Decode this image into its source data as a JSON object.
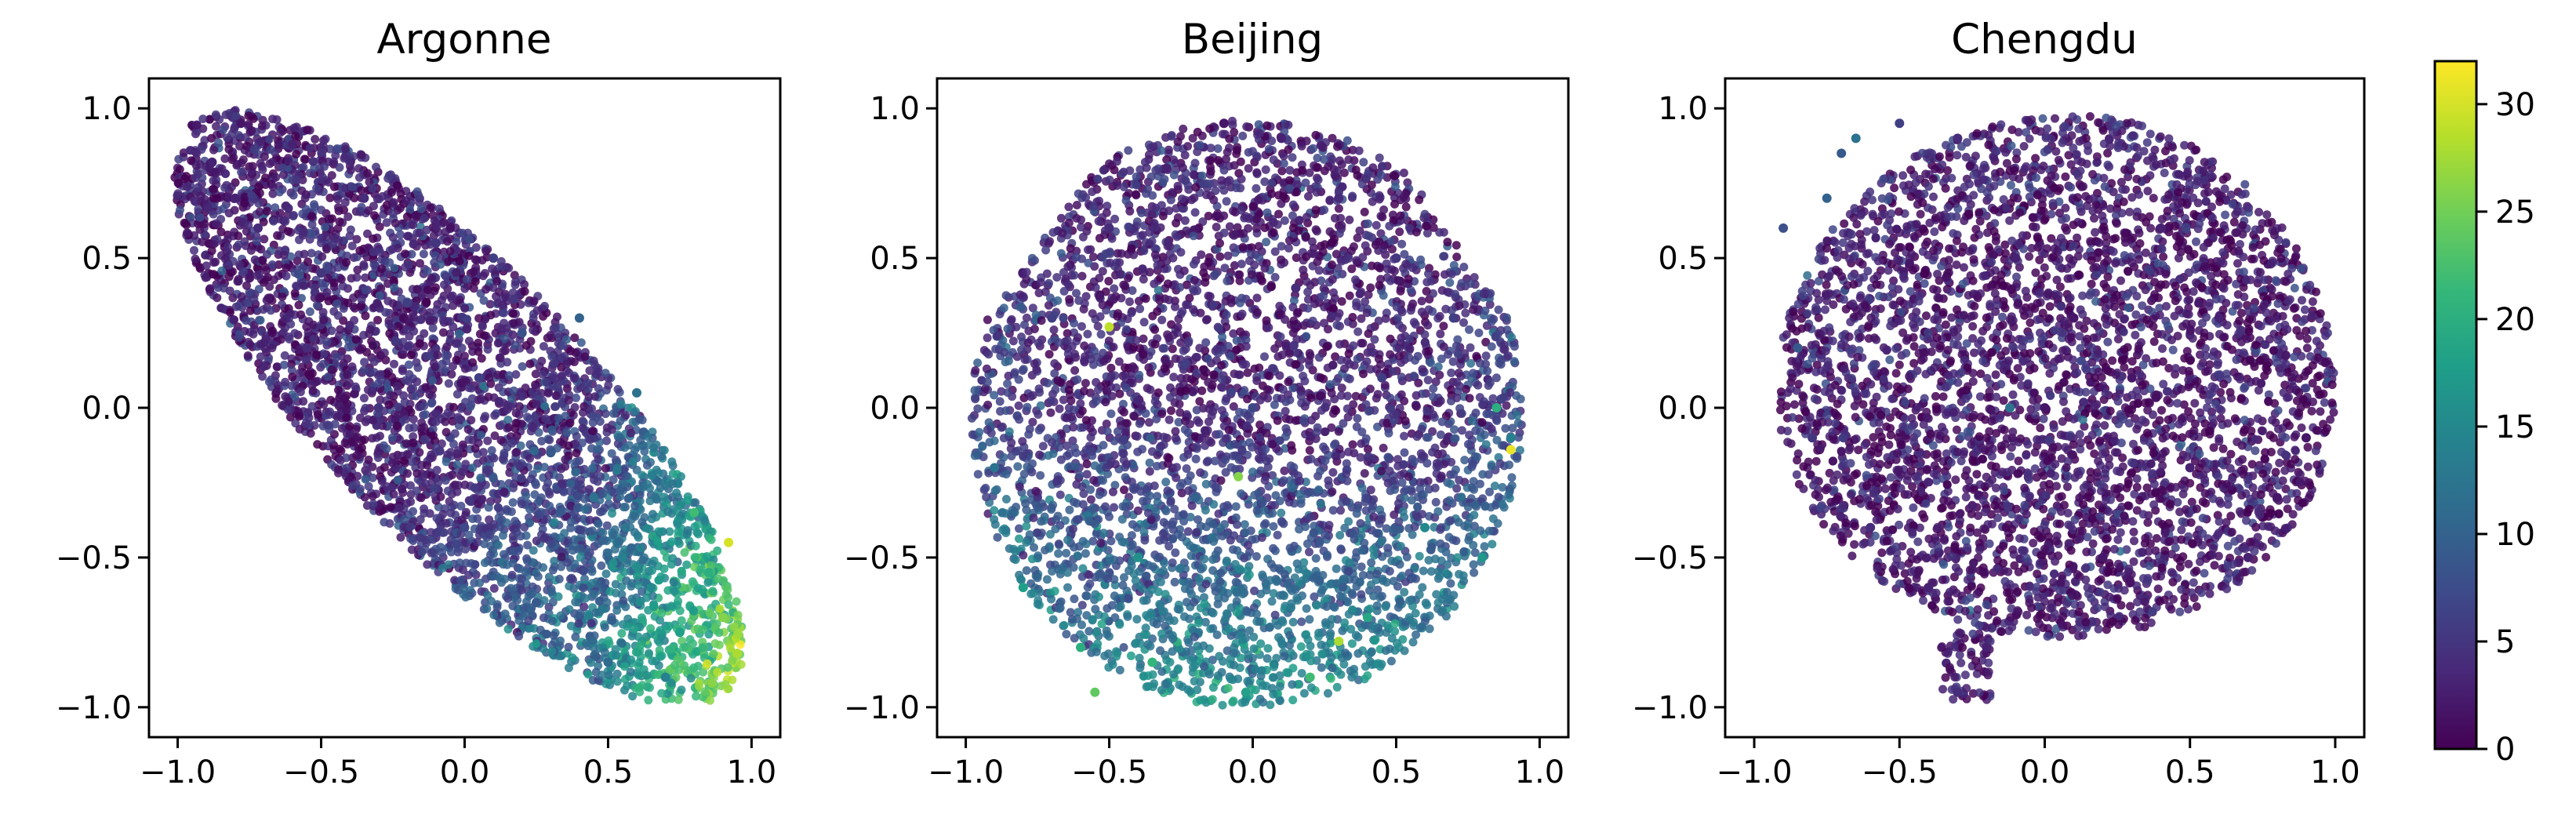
{
  "chart_data": [
    {
      "type": "scatter",
      "title": "Argonne",
      "xlim": [
        -1.1,
        1.1
      ],
      "ylim": [
        -1.1,
        1.1
      ],
      "xticks": [
        -1.0,
        -0.5,
        0.0,
        0.5,
        1.0
      ],
      "yticks": [
        -1.0,
        -0.5,
        0.0,
        0.5,
        1.0
      ],
      "xtick_labels": [
        "−1.0",
        "−0.5",
        "0.0",
        "0.5",
        "1.0"
      ],
      "ytick_labels": [
        "−1.0",
        "−0.5",
        "0.0",
        "0.5",
        "1.0"
      ],
      "shape": "ellipse-diagonal",
      "color_profile": "increasing-toward-lower-right",
      "x": [
        -0.88,
        -0.78,
        -0.72,
        -0.6,
        -0.5,
        -0.35,
        -0.2,
        -0.1,
        0.05,
        0.2,
        0.3,
        0.45,
        0.55,
        0.65,
        0.75,
        0.85,
        0.9,
        0.95,
        -0.55,
        -0.3,
        0.0,
        0.25,
        0.5,
        0.7,
        -0.8,
        0.1,
        0.6,
        0.8,
        0.4,
        0.92
      ],
      "y": [
        0.82,
        0.95,
        0.6,
        0.88,
        0.45,
        0.7,
        0.35,
        0.55,
        0.1,
        0.25,
        -0.15,
        -0.3,
        -0.5,
        -0.6,
        -0.75,
        -0.55,
        -0.7,
        -0.82,
        0.2,
        0.0,
        -0.4,
        -0.65,
        -0.85,
        -0.9,
        0.7,
        0.5,
        0.05,
        -0.35,
        0.3,
        -0.45
      ],
      "c": [
        3,
        2,
        4,
        3,
        5,
        4,
        6,
        5,
        6,
        8,
        9,
        12,
        14,
        15,
        18,
        20,
        26,
        28,
        4,
        5,
        7,
        9,
        11,
        14,
        3,
        6,
        12,
        22,
        10,
        30
      ]
    },
    {
      "type": "scatter",
      "title": "Beijing",
      "xlim": [
        -1.1,
        1.1
      ],
      "ylim": [
        -1.1,
        1.1
      ],
      "xticks": [
        -1.0,
        -0.5,
        0.0,
        0.5,
        1.0
      ],
      "yticks": [
        -1.0,
        -0.5,
        0.0,
        0.5,
        1.0
      ],
      "xtick_labels": [
        "−1.0",
        "−0.5",
        "0.0",
        "0.5",
        "1.0"
      ],
      "ytick_labels": [
        "−1.0",
        "−0.5",
        "0.0",
        "0.5",
        "1.0"
      ],
      "shape": "blob-round",
      "color_profile": "increasing-toward-bottom",
      "x": [
        -0.9,
        -0.7,
        -0.5,
        -0.3,
        -0.1,
        0.1,
        0.3,
        0.5,
        0.7,
        0.9,
        -0.8,
        -0.6,
        -0.4,
        -0.2,
        0.0,
        0.2,
        0.4,
        0.6,
        0.8,
        -0.55,
        -0.35,
        0.15,
        0.45,
        0.85,
        -0.5,
        0.9,
        -0.05,
        0.3
      ],
      "y": [
        -0.2,
        0.3,
        0.6,
        0.8,
        0.95,
        0.9,
        0.7,
        0.5,
        0.3,
        -0.1,
        -0.6,
        -0.8,
        -0.5,
        -0.3,
        0.0,
        -0.9,
        -0.7,
        -0.4,
        -0.5,
        -0.95,
        -0.85,
        0.4,
        0.1,
        0.0,
        0.27,
        -0.14,
        -0.23,
        -0.78
      ],
      "c": [
        12,
        6,
        4,
        3,
        2,
        3,
        4,
        5,
        6,
        14,
        18,
        20,
        16,
        10,
        7,
        22,
        19,
        15,
        17,
        24,
        21,
        4,
        6,
        20,
        29,
        31,
        26,
        28
      ]
    },
    {
      "type": "scatter",
      "title": "Chengdu",
      "xlim": [
        -1.1,
        1.1
      ],
      "ylim": [
        -1.1,
        1.1
      ],
      "xticks": [
        -1.0,
        -0.5,
        0.0,
        0.5,
        1.0
      ],
      "yticks": [
        -1.0,
        -0.5,
        0.0,
        0.5,
        1.0
      ],
      "xtick_labels": [
        "−1.0",
        "−0.5",
        "0.0",
        "0.5",
        "1.0"
      ],
      "ytick_labels": [
        "−1.0",
        "−0.5",
        "0.0",
        "0.5",
        "1.0"
      ],
      "shape": "egg-with-tail",
      "color_profile": "mostly-low-upper-left-higher",
      "x": [
        -0.9,
        -0.7,
        -0.5,
        -0.3,
        -0.1,
        0.1,
        0.3,
        0.5,
        0.7,
        0.9,
        -0.8,
        -0.6,
        -0.4,
        -0.2,
        0.0,
        0.2,
        0.4,
        0.6,
        0.8,
        -0.3,
        -0.75,
        -0.65,
        -0.85,
        -0.12
      ],
      "y": [
        0.6,
        0.85,
        0.95,
        0.9,
        0.5,
        0.3,
        0.1,
        -0.2,
        -0.5,
        -0.1,
        -0.1,
        -0.4,
        -0.6,
        -0.8,
        0.0,
        -0.5,
        0.6,
        0.3,
        -0.3,
        -0.95,
        0.7,
        0.9,
        0.2,
        0.0
      ],
      "c": [
        8,
        9,
        6,
        4,
        3,
        2,
        2,
        3,
        3,
        2,
        5,
        4,
        3,
        3,
        2,
        2,
        3,
        3,
        2,
        4,
        10,
        12,
        9,
        12
      ]
    }
  ],
  "colorbar": {
    "range": [
      0,
      32
    ],
    "ticks": [
      0,
      5,
      10,
      15,
      20,
      25,
      30
    ],
    "tick_labels": [
      "0",
      "5",
      "10",
      "15",
      "20",
      "25",
      "30"
    ],
    "colormap": "viridis",
    "colormap_stops": [
      "#440154",
      "#482878",
      "#3e4989",
      "#31688e",
      "#26828e",
      "#1f9e89",
      "#35b779",
      "#6ece58",
      "#b5de2b",
      "#fde725"
    ]
  }
}
